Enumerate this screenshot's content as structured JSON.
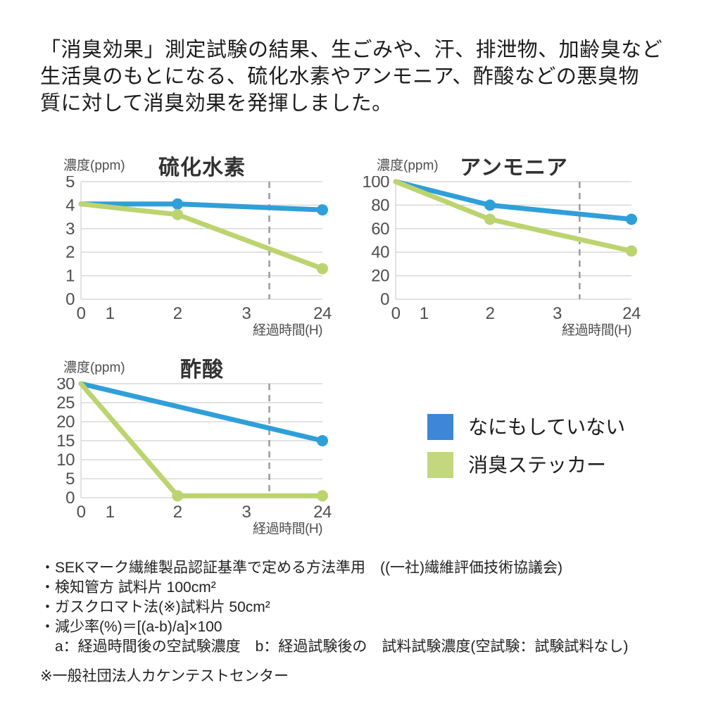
{
  "header": {
    "lines": [
      "「消臭効果」測定試験の結果、生ごみや、汗、排泄物、加齢臭など",
      "生活臭のもとになる、硫化水素やアンモニア、酢酸などの悪臭物",
      "質に対して消臭効果を発揮しました。"
    ]
  },
  "colors": {
    "blue": "#2F9FD9",
    "green": "#BCD46E",
    "grid": "#D9D9D9",
    "dash": "#9B9B9B",
    "tick": "#4F4F4F",
    "title": "#323232",
    "text": "#1C1C1C"
  },
  "chart_data": [
    {
      "type": "line",
      "title": "硫化水素",
      "ylabel": "濃度(ppm)",
      "xlabel": "経過時間(H)",
      "categories": [
        0,
        1,
        2,
        3,
        24
      ],
      "ylim": [
        0,
        5
      ],
      "y_ticks": [
        5,
        4,
        3,
        2,
        1,
        0
      ],
      "grid": "on",
      "axis_break_between": [
        3,
        24
      ],
      "series": [
        {
          "name": "なにもしていない",
          "color_key": "blue",
          "points": [
            [
              0,
              4.05
            ],
            [
              2,
              4.05
            ],
            [
              24,
              3.8
            ]
          ],
          "markers": [
            2,
            24
          ]
        },
        {
          "name": "消臭ステッカー",
          "color_key": "green",
          "points": [
            [
              0,
              4.05
            ],
            [
              2,
              3.6
            ],
            [
              24,
              1.3
            ]
          ],
          "markers": [
            2,
            24
          ]
        }
      ]
    },
    {
      "type": "line",
      "title": "アンモニア",
      "ylabel": "濃度(ppm)",
      "xlabel": "経過時間(H)",
      "categories": [
        0,
        1,
        2,
        3,
        24
      ],
      "ylim": [
        0,
        100
      ],
      "y_ticks": [
        100,
        80,
        60,
        40,
        20,
        0
      ],
      "grid": "on",
      "axis_break_between": [
        3,
        24
      ],
      "series": [
        {
          "name": "なにもしていない",
          "color_key": "blue",
          "points": [
            [
              0,
              100
            ],
            [
              2,
              80
            ],
            [
              24,
              68
            ]
          ],
          "markers": [
            2,
            24
          ]
        },
        {
          "name": "消臭ステッカー",
          "color_key": "green",
          "points": [
            [
              0,
              100
            ],
            [
              2,
              68
            ],
            [
              24,
              41
            ]
          ],
          "markers": [
            2,
            24
          ]
        }
      ]
    },
    {
      "type": "line",
      "title": "酢酸",
      "ylabel": "濃度(ppm)",
      "xlabel": "経過時間(H)",
      "categories": [
        0,
        1,
        2,
        3,
        24
      ],
      "ylim": [
        0,
        30
      ],
      "y_ticks": [
        30,
        25,
        20,
        15,
        10,
        5,
        0
      ],
      "grid": "on",
      "axis_break_between": [
        3,
        24
      ],
      "series": [
        {
          "name": "なにもしていない",
          "color_key": "blue",
          "points": [
            [
              0,
              30
            ],
            [
              24,
              15
            ]
          ],
          "markers": [
            24
          ]
        },
        {
          "name": "消臭ステッカー",
          "color_key": "green",
          "points": [
            [
              0,
              30
            ],
            [
              2,
              0.5
            ],
            [
              24,
              0.5
            ]
          ],
          "markers": [
            2,
            24
          ]
        }
      ]
    }
  ],
  "legend": {
    "items": [
      {
        "label": "なにもしていない",
        "color": "#3E86D8"
      },
      {
        "label": "消臭ステッカー",
        "color": "#C2D77E"
      }
    ]
  },
  "footnotes": {
    "bullets": [
      "・SEKマーク繊維製品認証基準で定める方法準用　((一社)繊維評価技術協議会)",
      "・検知管方 試料片 100cm²",
      "・ガスクロマト法(※)試料片 50cm²",
      "・減少率(%)＝[(a-b)/a]×100",
      "　a：経過時間後の空試験濃度　b：経過試験後の　試料試験濃度(空試験：試験試料なし)"
    ],
    "source": "※一般社団法人カケンテストセンター"
  }
}
